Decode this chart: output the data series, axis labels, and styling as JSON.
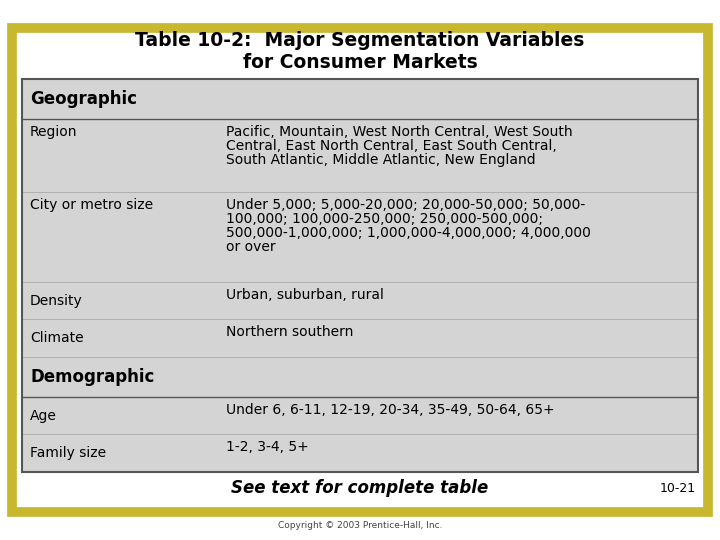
{
  "title_line1": "Table 10-2:  Major Segmentation Variables",
  "title_line2": "for Consumer Markets",
  "background_color": "#ffffff",
  "outer_border_color": "#c8b830",
  "table_bg_color": "#d4d4d4",
  "table_border_color": "#555555",
  "rows": [
    {
      "type": "header",
      "label": "Geographic",
      "value": ""
    },
    {
      "type": "data",
      "label": "Region",
      "value": "Pacific, Mountain, West North Central, West South\nCentral, East North Central, East South Central,\nSouth Atlantic, Middle Atlantic, New England"
    },
    {
      "type": "data",
      "label": "City or metro size",
      "value": "Under 5,000; 5,000-20,000; 20,000-50,000; 50,000-\n100,000; 100,000-250,000; 250,000-500,000;\n500,000-1,000,000; 1,000,000-4,000,000; 4,000,000\nor over"
    },
    {
      "type": "data",
      "label": "Density",
      "value": "Urban, suburban, rural"
    },
    {
      "type": "data",
      "label": "Climate",
      "value": "Northern southern"
    },
    {
      "type": "header",
      "label": "Demographic",
      "value": ""
    },
    {
      "type": "data",
      "label": "Age",
      "value": "Under 6, 6-11, 12-19, 20-34, 35-49, 50-64, 65+"
    },
    {
      "type": "data",
      "label": "Family size",
      "value": "1-2, 3-4, 5+"
    }
  ],
  "footer_text": "See text for complete table",
  "page_number": "10-21",
  "copyright": "Copyright © 2003 Prentice-Hall, Inc.",
  "title_fontsize": 13.5,
  "header_fontsize": 12,
  "body_fontsize": 10
}
